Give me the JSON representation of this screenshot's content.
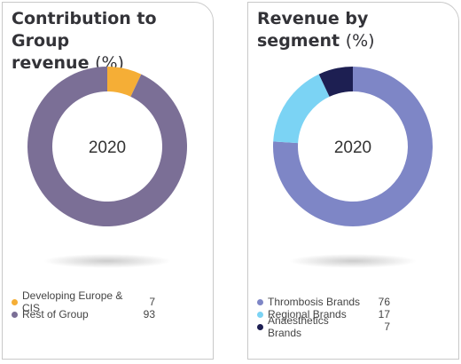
{
  "chart_data": [
    {
      "type": "pie",
      "title": "Contribution to Group",
      "title_line2": "revenue",
      "title_unit": "(%)",
      "center_label": "2020",
      "slices": [
        {
          "label": "Developing Europe & CIS",
          "value": 7,
          "display": "7",
          "color": "#F5AE36"
        },
        {
          "label": "Rest of Group",
          "value": 93,
          "display": "93",
          "color": "#7B6F96"
        }
      ]
    },
    {
      "type": "pie",
      "title": "Revenue by segment",
      "title_unit": "(%)",
      "center_label": "2020",
      "slices": [
        {
          "label": "Thrombosis Brands",
          "value": 76,
          "display": "76",
          "color": "#7E86C6"
        },
        {
          "label": "Regional Brands",
          "value": 17,
          "display": "17",
          "color": "#7BD3F4"
        },
        {
          "label": "Anaesthetics Brands",
          "value": 7,
          "display": "7",
          "color": "#1D1F52"
        }
      ]
    }
  ]
}
